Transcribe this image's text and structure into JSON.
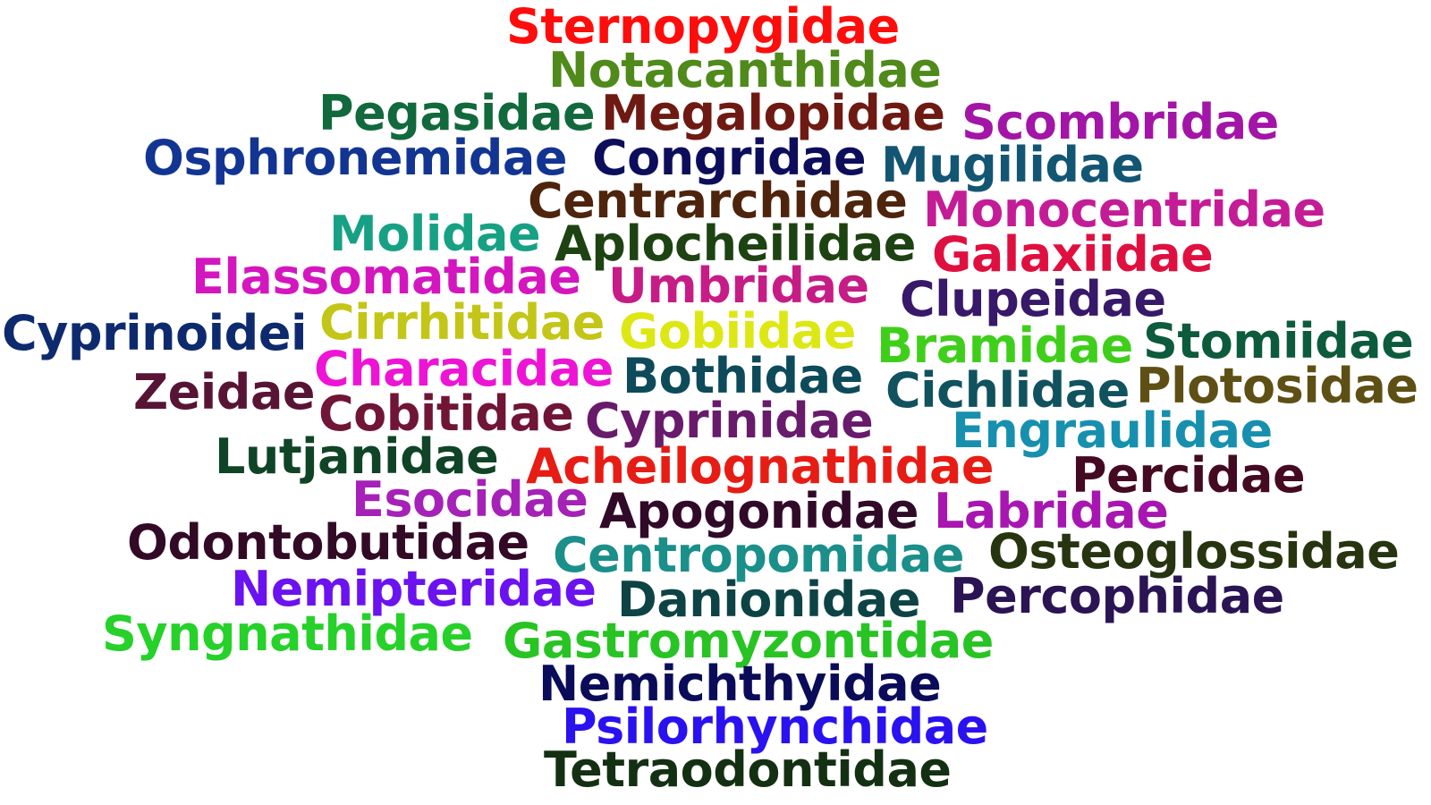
{
  "words": [
    {
      "text": "Sternopygidae",
      "color": "#ff0c0c"
    },
    {
      "text": "Notacanthidae",
      "color": "#4f8a1b"
    },
    {
      "text": "Pegasidae",
      "color": "#11693c"
    },
    {
      "text": "Megalopidae",
      "color": "#6e1a12"
    },
    {
      "text": "Scombridae",
      "color": "#a215a6"
    },
    {
      "text": "Osphronemidae",
      "color": "#123493"
    },
    {
      "text": "Congridae",
      "color": "#0c0e5c"
    },
    {
      "text": "Mugilidae",
      "color": "#135673"
    },
    {
      "text": "Centrarchidae",
      "color": "#4e240c"
    },
    {
      "text": "Monocentridae",
      "color": "#c41c96"
    },
    {
      "text": "Molidae",
      "color": "#17a184"
    },
    {
      "text": "Aplocheilidae",
      "color": "#1d4312"
    },
    {
      "text": "Galaxiidae",
      "color": "#df1040"
    },
    {
      "text": "Elassomatidae",
      "color": "#d416bf"
    },
    {
      "text": "Umbridae",
      "color": "#c61c85"
    },
    {
      "text": "Clupeidae",
      "color": "#371869"
    },
    {
      "text": "Cyprinoidei",
      "color": "#0e2a6f"
    },
    {
      "text": "Cirrhitidae",
      "color": "#c3c617"
    },
    {
      "text": "Gobiidae",
      "color": "#dde714"
    },
    {
      "text": "Bramidae",
      "color": "#3fcf1b"
    },
    {
      "text": "Stomiidae",
      "color": "#0d5b3d"
    },
    {
      "text": "Characidae",
      "color": "#ed14d5"
    },
    {
      "text": "Bothidae",
      "color": "#0d4a5a"
    },
    {
      "text": "Cichlidae",
      "color": "#10525d"
    },
    {
      "text": "Plotosidae",
      "color": "#5e5015"
    },
    {
      "text": "Zeidae",
      "color": "#581435"
    },
    {
      "text": "Cobitidae",
      "color": "#701535"
    },
    {
      "text": "Cyprinidae",
      "color": "#681a6b"
    },
    {
      "text": "Engraulidae",
      "color": "#1690ae"
    },
    {
      "text": "Lutjanidae",
      "color": "#0f4426"
    },
    {
      "text": "Acheilognathidae",
      "color": "#e71c14"
    },
    {
      "text": "Percidae",
      "color": "#440a22"
    },
    {
      "text": "Esocidae",
      "color": "#a521b7"
    },
    {
      "text": "Apogonidae",
      "color": "#300a28"
    },
    {
      "text": "Labridae",
      "color": "#a716b1"
    },
    {
      "text": "Odontobutidae",
      "color": "#320a26"
    },
    {
      "text": "Centropomidae",
      "color": "#1b8f8a"
    },
    {
      "text": "Osteoglossidae",
      "color": "#263510"
    },
    {
      "text": "Nemipteridae",
      "color": "#6b12f0"
    },
    {
      "text": "Danionidae",
      "color": "#0d4345"
    },
    {
      "text": "Percophidae",
      "color": "#2a1454"
    },
    {
      "text": "Syngnathidae",
      "color": "#26d129"
    },
    {
      "text": "Gastromyzontidae",
      "color": "#27c423"
    },
    {
      "text": "Nemichthyidae",
      "color": "#0a0c59"
    },
    {
      "text": "Psilorhynchidae",
      "color": "#2a11f0"
    },
    {
      "text": "Tetraodontidae",
      "color": "#143013"
    }
  ]
}
